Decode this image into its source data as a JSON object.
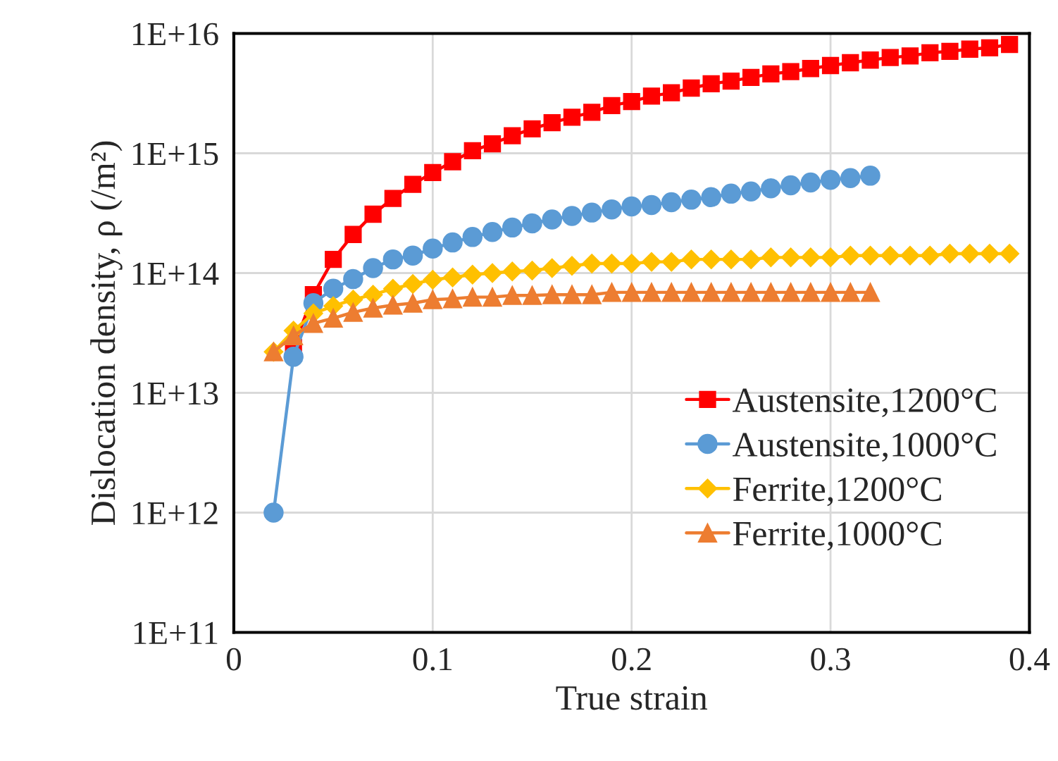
{
  "chart_data": {
    "type": "line",
    "xlabel": "True strain",
    "ylabel": "Dislocation density, ρ (/m²)",
    "log": "y",
    "xlim": [
      0,
      0.4
    ],
    "xticks": [
      0,
      0.1,
      0.2,
      0.3,
      0.4
    ],
    "ylim": [
      100000000000.0,
      1e+16
    ],
    "yticks": [
      {
        "value": 100000000000.0,
        "label": "1E+11"
      },
      {
        "value": 1000000000000.0,
        "label": "1E+12"
      },
      {
        "value": 10000000000000.0,
        "label": "1E+13"
      },
      {
        "value": 100000000000000.0,
        "label": "1E+14"
      },
      {
        "value": 1000000000000000.0,
        "label": "1E+15"
      },
      {
        "value": 1e+16,
        "label": "1E+16"
      }
    ],
    "grid": true,
    "legend": "bottom right",
    "line_style": "solid",
    "series": [
      {
        "name": "Austensite,1200°C",
        "color": "#ff0000",
        "marker": "square",
        "x": [
          0.03,
          0.04,
          0.05,
          0.06,
          0.07,
          0.08,
          0.09,
          0.1,
          0.11,
          0.12,
          0.13,
          0.14,
          0.15,
          0.16,
          0.17,
          0.18,
          0.19,
          0.2,
          0.21,
          0.22,
          0.23,
          0.24,
          0.25,
          0.26,
          0.27,
          0.28,
          0.29,
          0.3,
          0.31,
          0.32,
          0.33,
          0.34,
          0.35,
          0.36,
          0.37,
          0.38,
          0.39
        ],
        "values": [
          24000000000000.0,
          66000000000000.0,
          130000000000000.0,
          210000000000000.0,
          310000000000000.0,
          420000000000000.0,
          550000000000000.0,
          690000000000000.0,
          850000000000000.0,
          1050000000000000.0,
          1200000000000000.0,
          1400000000000000.0,
          1600000000000000.0,
          1800000000000000.0,
          2000000000000000.0,
          2200000000000000.0,
          2500000000000000.0,
          2700000000000000.0,
          3000000000000000.0,
          3200000000000000.0,
          3500000000000000.0,
          3800000000000000.0,
          4000000000000000.0,
          4300000000000000.0,
          4600000000000000.0,
          4800000000000000.0,
          5100000000000000.0,
          5400000000000000.0,
          5700000000000000.0,
          6000000000000000.0,
          6300000000000000.0,
          6500000000000000.0,
          6900000000000000.0,
          7100000000000000.0,
          7400000000000000.0,
          7600000000000000.0,
          8100000000000000.0
        ]
      },
      {
        "name": "Austensite,1000°C",
        "color": "#5b9bd5",
        "marker": "circle",
        "x": [
          0.02,
          0.03,
          0.04,
          0.05,
          0.06,
          0.07,
          0.08,
          0.09,
          0.1,
          0.11,
          0.12,
          0.13,
          0.14,
          0.15,
          0.16,
          0.17,
          0.18,
          0.19,
          0.2,
          0.21,
          0.22,
          0.23,
          0.24,
          0.25,
          0.26,
          0.27,
          0.28,
          0.29,
          0.3,
          0.31,
          0.32
        ],
        "values": [
          1000000000000.0,
          20000000000000.0,
          56000000000000.0,
          74000000000000.0,
          89000000000000.0,
          110000000000000.0,
          130000000000000.0,
          140000000000000.0,
          160000000000000.0,
          180000000000000.0,
          200000000000000.0,
          220000000000000.0,
          240000000000000.0,
          260000000000000.0,
          280000000000000.0,
          300000000000000.0,
          320000000000000.0,
          340000000000000.0,
          360000000000000.0,
          370000000000000.0,
          390000000000000.0,
          410000000000000.0,
          430000000000000.0,
          460000000000000.0,
          480000000000000.0,
          510000000000000.0,
          540000000000000.0,
          570000000000000.0,
          600000000000000.0,
          620000000000000.0,
          650000000000000.0
        ]
      },
      {
        "name": "Ferrite,1200°C",
        "color": "#ffc000",
        "marker": "diamond",
        "x": [
          0.02,
          0.03,
          0.04,
          0.05,
          0.06,
          0.07,
          0.08,
          0.09,
          0.1,
          0.11,
          0.12,
          0.13,
          0.14,
          0.15,
          0.16,
          0.17,
          0.18,
          0.19,
          0.2,
          0.21,
          0.22,
          0.23,
          0.24,
          0.25,
          0.26,
          0.27,
          0.28,
          0.29,
          0.3,
          0.31,
          0.32,
          0.33,
          0.34,
          0.35,
          0.36,
          0.37,
          0.38,
          0.39
        ],
        "values": [
          22000000000000.0,
          33000000000000.0,
          46000000000000.0,
          53000000000000.0,
          60000000000000.0,
          66000000000000.0,
          74000000000000.0,
          81000000000000.0,
          88000000000000.0,
          92000000000000.0,
          97000000000000.0,
          100000000000000.0,
          103000000000000.0,
          105000000000000.0,
          110000000000000.0,
          115000000000000.0,
          120000000000000.0,
          120000000000000.0,
          120000000000000.0,
          124000000000000.0,
          124000000000000.0,
          130000000000000.0,
          130000000000000.0,
          130000000000000.0,
          130000000000000.0,
          135000000000000.0,
          135000000000000.0,
          135000000000000.0,
          135000000000000.0,
          140000000000000.0,
          140000000000000.0,
          140000000000000.0,
          140000000000000.0,
          140000000000000.0,
          145000000000000.0,
          145000000000000.0,
          145000000000000.0,
          145000000000000.0
        ]
      },
      {
        "name": "Ferrite,1000°C",
        "color": "#ed7d31",
        "marker": "triangle",
        "x": [
          0.02,
          0.03,
          0.04,
          0.05,
          0.06,
          0.07,
          0.08,
          0.09,
          0.1,
          0.11,
          0.12,
          0.13,
          0.14,
          0.15,
          0.16,
          0.17,
          0.18,
          0.19,
          0.2,
          0.21,
          0.22,
          0.23,
          0.24,
          0.25,
          0.26,
          0.27,
          0.28,
          0.29,
          0.3,
          0.31,
          0.32
        ],
        "values": [
          22000000000000.0,
          30000000000000.0,
          38000000000000.0,
          42000000000000.0,
          47000000000000.0,
          51000000000000.0,
          54000000000000.0,
          56000000000000.0,
          60000000000000.0,
          61000000000000.0,
          63000000000000.0,
          63000000000000.0,
          65000000000000.0,
          65000000000000.0,
          66000000000000.0,
          66000000000000.0,
          66000000000000.0,
          69000000000000.0,
          69000000000000.0,
          69000000000000.0,
          69000000000000.0,
          69000000000000.0,
          69000000000000.0,
          69000000000000.0,
          69000000000000.0,
          69000000000000.0,
          69000000000000.0,
          69000000000000.0,
          69000000000000.0,
          69000000000000.0,
          69000000000000.0
        ]
      }
    ]
  }
}
